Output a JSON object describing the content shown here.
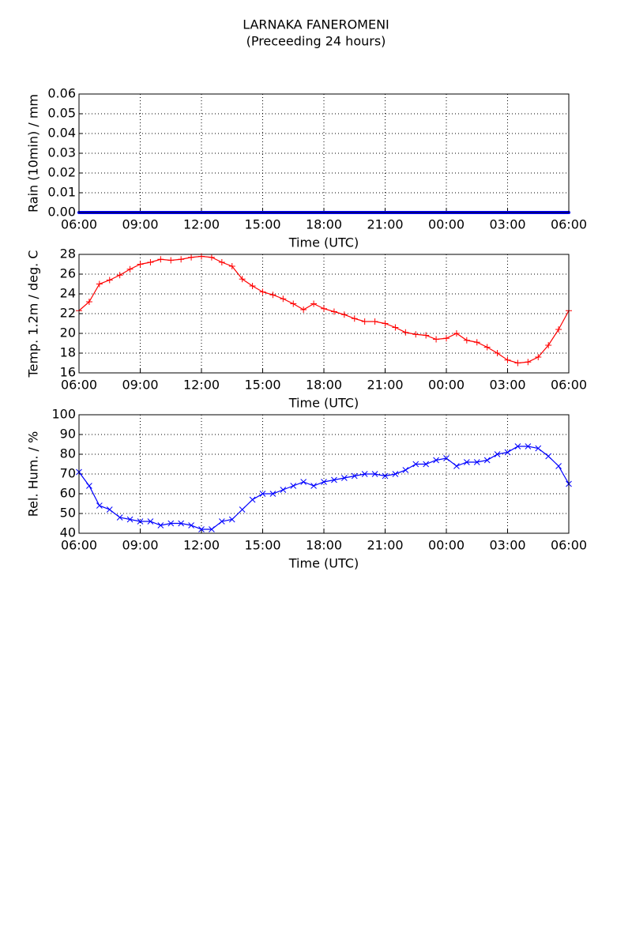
{
  "title": "LARNAKA FANEROMENI",
  "subtitle": "(Preceeding 24 hours)",
  "chart_data": [
    {
      "type": "line",
      "xlabel": "Time (UTC)",
      "ylabel": "Rain (10min) / mm",
      "x": [
        "06:00",
        "06:30",
        "07:00",
        "07:30",
        "08:00",
        "08:30",
        "09:00",
        "09:30",
        "10:00",
        "10:30",
        "11:00",
        "11:30",
        "12:00",
        "12:30",
        "13:00",
        "13:30",
        "14:00",
        "14:30",
        "15:00",
        "15:30",
        "16:00",
        "16:30",
        "17:00",
        "17:30",
        "18:00",
        "18:30",
        "19:00",
        "19:30",
        "20:00",
        "20:30",
        "21:00",
        "21:30",
        "22:00",
        "22:30",
        "23:00",
        "23:30",
        "00:00",
        "00:30",
        "01:00",
        "01:30",
        "02:00",
        "02:30",
        "03:00",
        "03:30",
        "04:00",
        "04:30",
        "05:00",
        "05:30",
        "06:00"
      ],
      "xticks": [
        "06:00",
        "09:00",
        "12:00",
        "15:00",
        "18:00",
        "21:00",
        "00:00",
        "03:00",
        "06:00"
      ],
      "ylim": [
        0,
        0.06
      ],
      "yticks": [
        {
          "value": 0,
          "label": "0.00"
        },
        {
          "value": 0.01,
          "label": "0.01"
        },
        {
          "value": 0.02,
          "label": "0.02"
        },
        {
          "value": 0.03,
          "label": "0.03"
        },
        {
          "value": 0.04,
          "label": "0.04"
        },
        {
          "value": 0.05,
          "label": "0.05"
        },
        {
          "value": 0.06,
          "label": "0.06"
        }
      ],
      "grid": true,
      "series": [
        {
          "color": "#0000ff",
          "marker": "dot",
          "values": [
            0,
            0,
            0,
            0,
            0,
            0,
            0,
            0,
            0,
            0,
            0,
            0,
            0,
            0,
            0,
            0,
            0,
            0,
            0,
            0,
            0,
            0,
            0,
            0,
            0,
            0,
            0,
            0,
            0,
            0,
            0,
            0,
            0,
            0,
            0,
            0,
            0,
            0,
            0,
            0,
            0,
            0,
            0,
            0,
            0,
            0,
            0,
            0,
            0
          ]
        }
      ]
    },
    {
      "type": "line",
      "xlabel": "Time (UTC)",
      "ylabel": "Temp. 1.2m / deg. C",
      "x": [
        "06:00",
        "06:30",
        "07:00",
        "07:30",
        "08:00",
        "08:30",
        "09:00",
        "09:30",
        "10:00",
        "10:30",
        "11:00",
        "11:30",
        "12:00",
        "12:30",
        "13:00",
        "13:30",
        "14:00",
        "14:30",
        "15:00",
        "15:30",
        "16:00",
        "16:30",
        "17:00",
        "17:30",
        "18:00",
        "18:30",
        "19:00",
        "19:30",
        "20:00",
        "20:30",
        "21:00",
        "21:30",
        "22:00",
        "22:30",
        "23:00",
        "23:30",
        "00:00",
        "00:30",
        "01:00",
        "01:30",
        "02:00",
        "02:30",
        "03:00",
        "03:30",
        "04:00",
        "04:30",
        "05:00",
        "05:30",
        "06:00"
      ],
      "xticks": [
        "06:00",
        "09:00",
        "12:00",
        "15:00",
        "18:00",
        "21:00",
        "00:00",
        "03:00",
        "06:00"
      ],
      "ylim": [
        16,
        28
      ],
      "yticks": [
        16,
        18,
        20,
        22,
        24,
        26,
        28
      ],
      "grid": true,
      "series": [
        {
          "color": "#ff0000",
          "marker": "plus",
          "values": [
            22.3,
            23.2,
            25.0,
            25.4,
            25.9,
            26.5,
            27.0,
            27.2,
            27.5,
            27.4,
            27.5,
            27.7,
            27.8,
            27.7,
            27.2,
            26.8,
            25.5,
            24.8,
            24.2,
            23.9,
            23.5,
            23.0,
            22.4,
            23.0,
            22.5,
            22.2,
            21.9,
            21.5,
            21.2,
            21.2,
            21.0,
            20.6,
            20.1,
            19.9,
            19.8,
            19.4,
            19.5,
            20.0,
            19.3,
            19.1,
            18.6,
            18.0,
            17.3,
            17.0,
            17.1,
            17.6,
            18.8,
            20.4,
            22.3
          ]
        }
      ]
    },
    {
      "type": "line",
      "xlabel": "Time (UTC)",
      "ylabel": "Rel. Hum. / %",
      "x": [
        "06:00",
        "06:30",
        "07:00",
        "07:30",
        "08:00",
        "08:30",
        "09:00",
        "09:30",
        "10:00",
        "10:30",
        "11:00",
        "11:30",
        "12:00",
        "12:30",
        "13:00",
        "13:30",
        "14:00",
        "14:30",
        "15:00",
        "15:30",
        "16:00",
        "16:30",
        "17:00",
        "17:30",
        "18:00",
        "18:30",
        "19:00",
        "19:30",
        "20:00",
        "20:30",
        "21:00",
        "21:30",
        "22:00",
        "22:30",
        "23:00",
        "23:30",
        "00:00",
        "00:30",
        "01:00",
        "01:30",
        "02:00",
        "02:30",
        "03:00",
        "03:30",
        "04:00",
        "04:30",
        "05:00",
        "05:30",
        "06:00"
      ],
      "xticks": [
        "06:00",
        "09:00",
        "12:00",
        "15:00",
        "18:00",
        "21:00",
        "00:00",
        "03:00",
        "06:00"
      ],
      "ylim": [
        40,
        100
      ],
      "yticks": [
        40,
        50,
        60,
        70,
        80,
        90,
        100
      ],
      "grid": true,
      "series": [
        {
          "color": "#0000ff",
          "marker": "cross",
          "values": [
            71,
            64,
            54,
            52,
            48,
            47,
            46,
            46,
            44,
            45,
            45,
            44,
            42,
            42,
            46,
            47,
            52,
            57,
            60,
            60,
            62,
            64,
            66,
            64,
            66,
            67,
            68,
            69,
            70,
            70,
            69,
            70,
            72,
            75,
            75,
            77,
            78,
            74,
            76,
            76,
            77,
            80,
            81,
            84,
            84,
            83,
            79,
            74,
            65
          ]
        }
      ]
    }
  ]
}
